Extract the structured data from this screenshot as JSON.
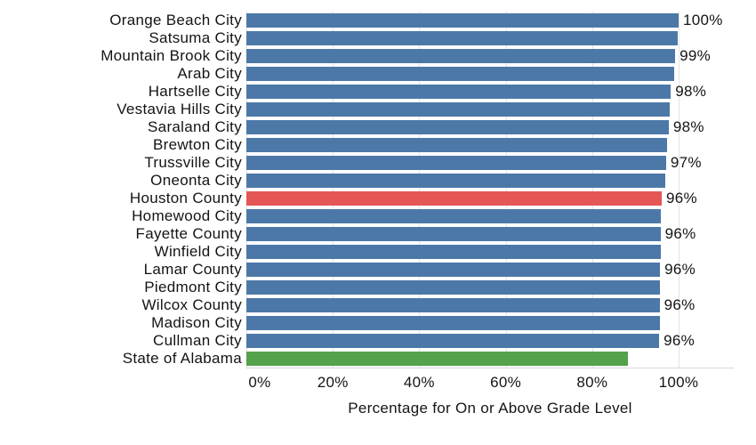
{
  "chart_data": {
    "type": "bar",
    "orientation": "horizontal",
    "title": "",
    "xlabel": "Percentage for On or Above Grade Level",
    "ylabel": "",
    "xlim": [
      0,
      100
    ],
    "x_tick_labels": [
      "0%",
      "20%",
      "40%",
      "60%",
      "80%",
      "100%"
    ],
    "x_tick_values": [
      0,
      20,
      40,
      60,
      80,
      100
    ],
    "grid": true,
    "legend": "none",
    "categories": [
      "Orange Beach City",
      "Satsuma City",
      "Mountain Brook City",
      "Arab City",
      "Hartselle City",
      "Vestavia Hills City",
      "Saraland City",
      "Brewton City",
      "Trussville City",
      "Oneonta City",
      "Houston County",
      "Homewood City",
      "Fayette County",
      "Winfield City",
      "Lamar County",
      "Piedmont City",
      "Wilcox County",
      "Madison City",
      "Cullman City",
      "State of Alabama"
    ],
    "values": [
      100,
      99.8,
      99.2,
      99,
      98.2,
      98,
      97.7,
      97.4,
      97.1,
      96.9,
      96.1,
      95.9,
      95.8,
      95.8,
      95.7,
      95.7,
      95.6,
      95.6,
      95.5,
      88.3
    ],
    "value_labels": [
      "100%",
      "",
      "99%",
      "",
      "98%",
      "",
      "98%",
      "",
      "97%",
      "",
      "96%",
      "",
      "96%",
      "",
      "96%",
      "",
      "96%",
      "",
      "96%",
      ""
    ],
    "bar_colors": [
      "default",
      "default",
      "default",
      "default",
      "default",
      "default",
      "default",
      "default",
      "default",
      "default",
      "highlight",
      "default",
      "default",
      "default",
      "default",
      "default",
      "default",
      "default",
      "default",
      "state"
    ],
    "colors": {
      "default": "#4C78A8",
      "highlight": "#E45756",
      "state": "#54A24B",
      "gridline": "#E3E3E3",
      "axis_line": "#D8D8D8",
      "text": "#141414"
    },
    "highlighted_category": "Houston County",
    "state_total_category": "State of Alabama"
  }
}
